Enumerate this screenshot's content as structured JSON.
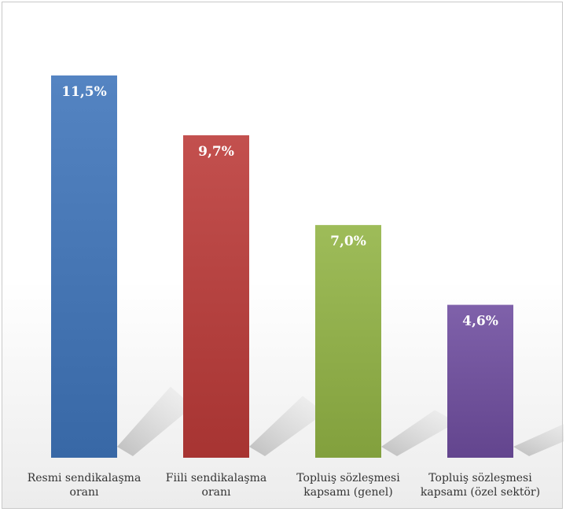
{
  "chart_data": {
    "type": "bar",
    "title": "",
    "xlabel": "",
    "ylabel": "",
    "ylim": [
      0,
      12.8
    ],
    "grid": false,
    "legend": "none",
    "categories": [
      [
        "Resmi sendikalaşma",
        "oranı"
      ],
      [
        "Fiili sendikalaşma",
        "oranı"
      ],
      [
        "Topluiş sözleşmesi",
        "kapsamı (genel)"
      ],
      [
        "Topluiş sözleşmesi",
        "kapsamı (özel sektör)"
      ]
    ],
    "values": [
      11.5,
      9.7,
      7.0,
      4.6
    ],
    "value_labels": [
      "11,5%",
      "9,7%",
      "7,0%",
      "4,6%"
    ],
    "colors": [
      "#4a7ab8",
      "#b94644",
      "#94b24f",
      "#7557a0"
    ]
  }
}
